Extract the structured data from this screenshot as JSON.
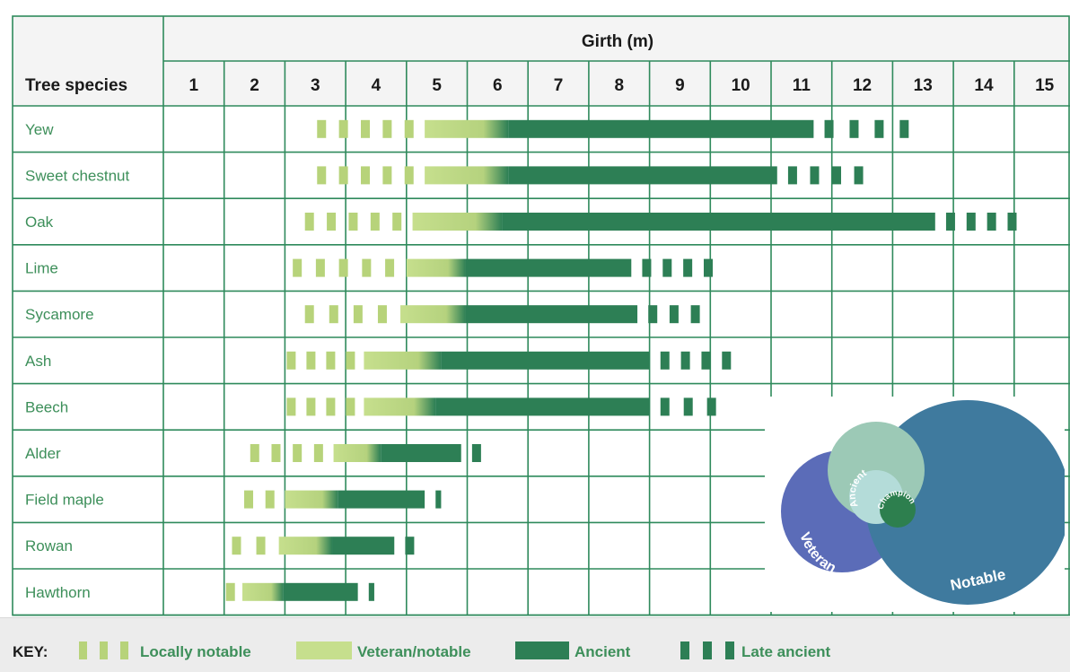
{
  "chart_data": {
    "type": "gantt-range",
    "xlabel": "Girth (m)",
    "row_header": "Tree species",
    "x_ticks": [
      "1",
      "2",
      "3",
      "4",
      "5",
      "6",
      "7",
      "8",
      "9",
      "10",
      "11",
      "12",
      "13",
      "14",
      "15"
    ],
    "xlim": [
      0.5,
      15.5
    ],
    "phases": [
      "Locally notable",
      "Veteran/notable",
      "Ancient",
      "Late ancient"
    ],
    "rows": [
      {
        "species": "Yew",
        "locally_notable": [
          3.0,
          4.8
        ],
        "veteran_notable": [
          4.8,
          6.0
        ],
        "ancient": [
          6.0,
          11.2
        ],
        "late_ancient": [
          11.2,
          13.0
        ]
      },
      {
        "species": "Sweet chestnut",
        "locally_notable": [
          3.0,
          4.8
        ],
        "veteran_notable": [
          4.8,
          6.0
        ],
        "ancient": [
          6.0,
          10.6
        ],
        "late_ancient": [
          10.6,
          12.2
        ]
      },
      {
        "species": "Oak",
        "locally_notable": [
          2.8,
          4.6
        ],
        "veteran_notable": [
          4.6,
          5.9
        ],
        "ancient": [
          5.9,
          13.2
        ],
        "late_ancient": [
          13.2,
          14.7
        ]
      },
      {
        "species": "Lime",
        "locally_notable": [
          2.6,
          4.5
        ],
        "veteran_notable": [
          4.5,
          5.3
        ],
        "ancient": [
          5.3,
          8.2
        ],
        "late_ancient": [
          8.2,
          9.7
        ]
      },
      {
        "species": "Sycamore",
        "locally_notable": [
          2.8,
          4.4
        ],
        "veteran_notable": [
          4.4,
          5.3
        ],
        "ancient": [
          5.3,
          8.3
        ],
        "late_ancient": [
          8.3,
          9.5
        ]
      },
      {
        "species": "Ash",
        "locally_notable": [
          2.5,
          3.8
        ],
        "veteran_notable": [
          3.8,
          4.9
        ],
        "ancient": [
          4.9,
          8.5
        ],
        "late_ancient": [
          8.5,
          10.0
        ]
      },
      {
        "species": "Beech",
        "locally_notable": [
          2.5,
          3.8
        ],
        "veteran_notable": [
          3.8,
          4.8
        ],
        "ancient": [
          4.8,
          8.5
        ],
        "late_ancient": [
          8.5,
          9.8
        ]
      },
      {
        "species": "Alder",
        "locally_notable": [
          1.9,
          3.3
        ],
        "veteran_notable": [
          3.3,
          3.9
        ],
        "ancient": [
          3.9,
          5.4
        ],
        "late_ancient": [
          5.4,
          6.0
        ]
      },
      {
        "species": "Field maple",
        "locally_notable": [
          1.8,
          2.5
        ],
        "veteran_notable": [
          2.5,
          3.2
        ],
        "ancient": [
          3.2,
          4.8
        ],
        "late_ancient": [
          4.8,
          5.1
        ]
      },
      {
        "species": "Rowan",
        "locally_notable": [
          1.6,
          2.4
        ],
        "veteran_notable": [
          2.4,
          3.1
        ],
        "ancient": [
          3.1,
          4.3
        ],
        "late_ancient": [
          4.3,
          4.9
        ]
      },
      {
        "species": "Hawthorn",
        "locally_notable": [
          1.5,
          1.8
        ],
        "veteran_notable": [
          1.8,
          2.3
        ],
        "ancient": [
          2.3,
          3.7
        ],
        "late_ancient": [
          3.7,
          4.0
        ]
      }
    ]
  },
  "key": {
    "label": "KEY:",
    "items": [
      "Locally notable",
      "Veteran/notable",
      "Ancient",
      "Late ancient"
    ]
  },
  "venn": {
    "labels": {
      "notable": "Notable",
      "veteran": "Veteran",
      "heritage": "Heritage",
      "ancient": "Ancient",
      "champion": "Champion"
    }
  },
  "colors": {
    "grid": "#2f8a5c",
    "text_green": "#3d8f5a",
    "locally_notable": "#b7d37a",
    "veteran_notable": "#c6df8d",
    "ancient": "#2d7f55",
    "late_ancient": "#2d7f55",
    "header_bg": "#f4f4f4",
    "notable": "#3f7a9e",
    "veteran": "#5b6cb8",
    "heritage": "#9cc9b6",
    "ancient_circle": "#b4dcd9",
    "champion": "#2d7f4e"
  }
}
